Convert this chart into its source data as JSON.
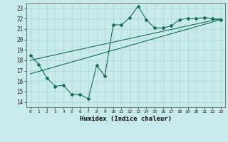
{
  "title": "",
  "xlabel": "Humidex (Indice chaleur)",
  "ylabel": "",
  "bg_color": "#c8eaea",
  "line_color": "#1a6b5a",
  "grid_color": "#a8d4d4",
  "xlim": [
    -0.5,
    23.5
  ],
  "ylim": [
    13.5,
    23.5
  ],
  "xticks": [
    0,
    1,
    2,
    3,
    4,
    5,
    6,
    7,
    8,
    9,
    10,
    11,
    12,
    13,
    14,
    15,
    16,
    17,
    18,
    19,
    20,
    21,
    22,
    23
  ],
  "yticks": [
    14,
    15,
    16,
    17,
    18,
    19,
    20,
    21,
    22,
    23
  ],
  "data_line": {
    "x": [
      0,
      1,
      2,
      3,
      4,
      5,
      6,
      7,
      8,
      9,
      10,
      11,
      12,
      13,
      14,
      15,
      16,
      17,
      18,
      19,
      20,
      21,
      22,
      23
    ],
    "y": [
      18.5,
      17.6,
      16.3,
      15.5,
      15.6,
      14.7,
      14.7,
      14.3,
      17.5,
      16.5,
      21.4,
      21.4,
      22.1,
      23.2,
      21.9,
      21.1,
      21.1,
      21.3,
      21.9,
      22.0,
      22.0,
      22.1,
      22.0,
      21.9
    ]
  },
  "reg_line1": {
    "x": [
      0,
      23
    ],
    "y": [
      18.0,
      22.0
    ]
  },
  "reg_line2": {
    "x": [
      0,
      23
    ],
    "y": [
      16.7,
      21.9
    ]
  },
  "figsize": [
    3.2,
    2.0
  ],
  "dpi": 100
}
